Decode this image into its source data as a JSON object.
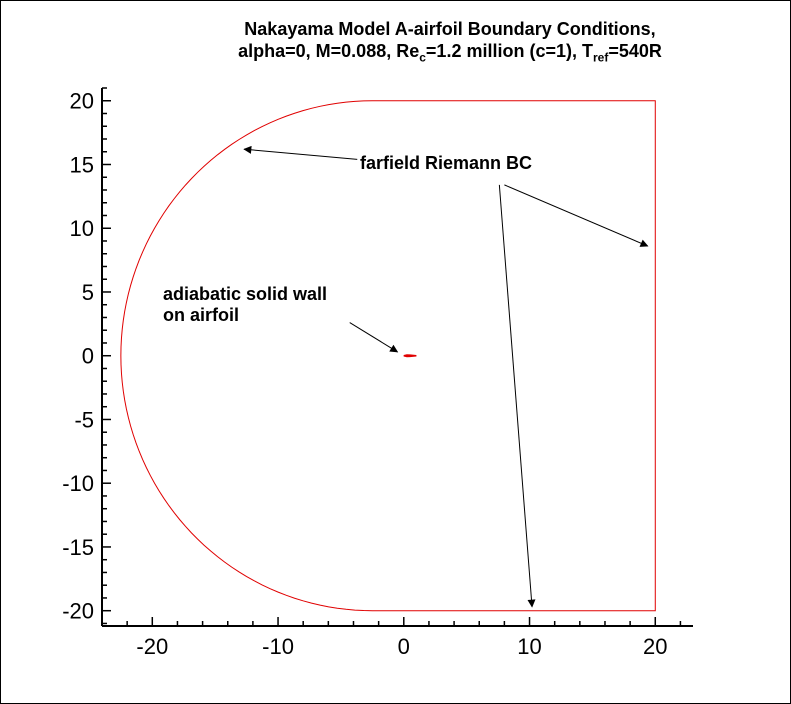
{
  "title": {
    "line1": "Nakayama Model A-airfoil Boundary Conditions,",
    "line2_a": "alpha=0, M=0.088, Re",
    "line2_sub1": "c",
    "line2_b": "=1.2 million (c=1), T",
    "line2_sub2": "ref",
    "line2_c": "=540R"
  },
  "annotations": {
    "farfield": "farfield Riemann BC",
    "wall_line1": "adiabatic solid wall",
    "wall_line2": "on airfoil"
  },
  "colors": {
    "boundary": "#e00000",
    "axes": "#000000",
    "background": "#ffffff"
  },
  "chart_data": {
    "type": "line",
    "xlim": [
      -24,
      23
    ],
    "ylim": [
      -21.2,
      21
    ],
    "x_ticks": [
      -20,
      -10,
      0,
      10,
      20
    ],
    "y_ticks": [
      20,
      15,
      10,
      5,
      0,
      -5,
      -10,
      -15,
      -20
    ],
    "grid": false,
    "series": [
      {
        "semicircle_center": [
          -2.5,
          0
        ],
        "semicircle_radius": 20,
        "points": [
          [
            -2.5,
            20
          ],
          [
            20,
            20
          ],
          [
            20,
            -20
          ],
          [
            -2.5,
            -20
          ]
        ]
      },
      {
        "points": [
          [
            0,
            0
          ],
          [
            0.25,
            0.06
          ],
          [
            0.5,
            0.05
          ],
          [
            1,
            0
          ],
          [
            0.5,
            -0.05
          ],
          [
            0.25,
            -0.06
          ],
          [
            0,
            0
          ]
        ]
      }
    ],
    "arrows": [
      {
        "from": [
          -3.7,
          15.4
        ],
        "to": [
          -12.7,
          16.2
        ]
      },
      {
        "from": [
          7.6,
          13.4
        ],
        "to": [
          10.2,
          -19.7
        ]
      },
      {
        "from": [
          8.0,
          13.4
        ],
        "to": [
          19.4,
          8.6
        ]
      },
      {
        "from": [
          -4.3,
          2.6
        ],
        "to": [
          -0.5,
          0.3
        ]
      }
    ]
  }
}
